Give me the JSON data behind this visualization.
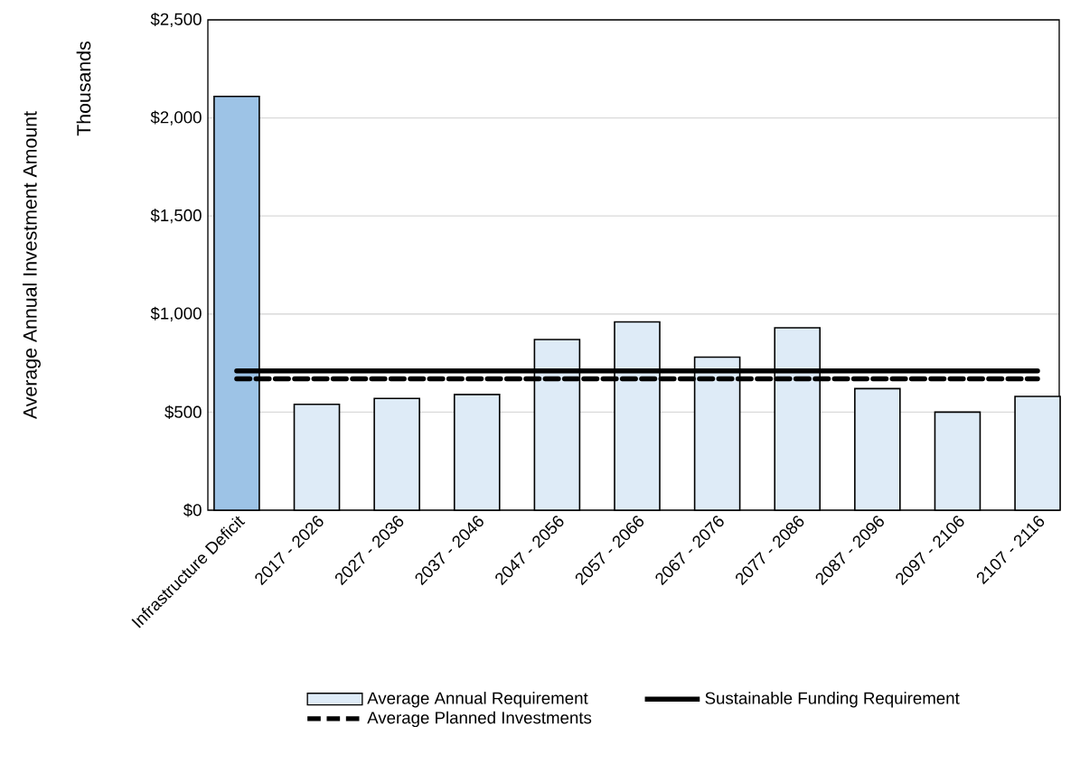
{
  "chart_data": {
    "type": "bar",
    "ylabel": "Average Annual Investment Amount",
    "annotations": [
      "Thousands"
    ],
    "categories": [
      "Infrastructure Deficit",
      "2017 - 2026",
      "2027 - 2036",
      "2037 - 2046",
      "2047 - 2056",
      "2057 - 2066",
      "2067 - 2076",
      "2077 - 2086",
      "2087 - 2096",
      "2097 - 2106",
      "2107 - 2116"
    ],
    "series": [
      {
        "name": "Average Annual Requirement",
        "color": "#deebf7",
        "colors": [
          "#9dc3e6",
          "#deebf7",
          "#deebf7",
          "#deebf7",
          "#deebf7",
          "#deebf7",
          "#deebf7",
          "#deebf7",
          "#deebf7",
          "#deebf7",
          "#deebf7"
        ],
        "values": [
          2110,
          540,
          570,
          590,
          870,
          960,
          780,
          930,
          620,
          500,
          580
        ]
      },
      {
        "name": "Sustainable Funding Requirement",
        "type": "line",
        "color": "#000000",
        "line_style": "solid",
        "values": [
          710,
          710,
          710,
          710,
          710,
          710,
          710,
          710,
          710,
          710,
          710
        ]
      },
      {
        "name": "Average Planned Investments",
        "type": "line",
        "color": "#000000",
        "line_style": "dashed",
        "values": [
          670,
          670,
          670,
          670,
          670,
          670,
          670,
          670,
          670,
          670,
          670
        ]
      }
    ],
    "ylim": [
      0,
      2500
    ],
    "yticks": [
      {
        "value": 0,
        "label": "$0"
      },
      {
        "value": 500,
        "label": "$500"
      },
      {
        "value": 1000,
        "label": "$1,000"
      },
      {
        "value": 1500,
        "label": "$1,500"
      },
      {
        "value": 2000,
        "label": "$2,000"
      },
      {
        "value": 2500,
        "label": "$2,500"
      }
    ],
    "grid": "y",
    "legend": "bottom",
    "marker": "none"
  }
}
